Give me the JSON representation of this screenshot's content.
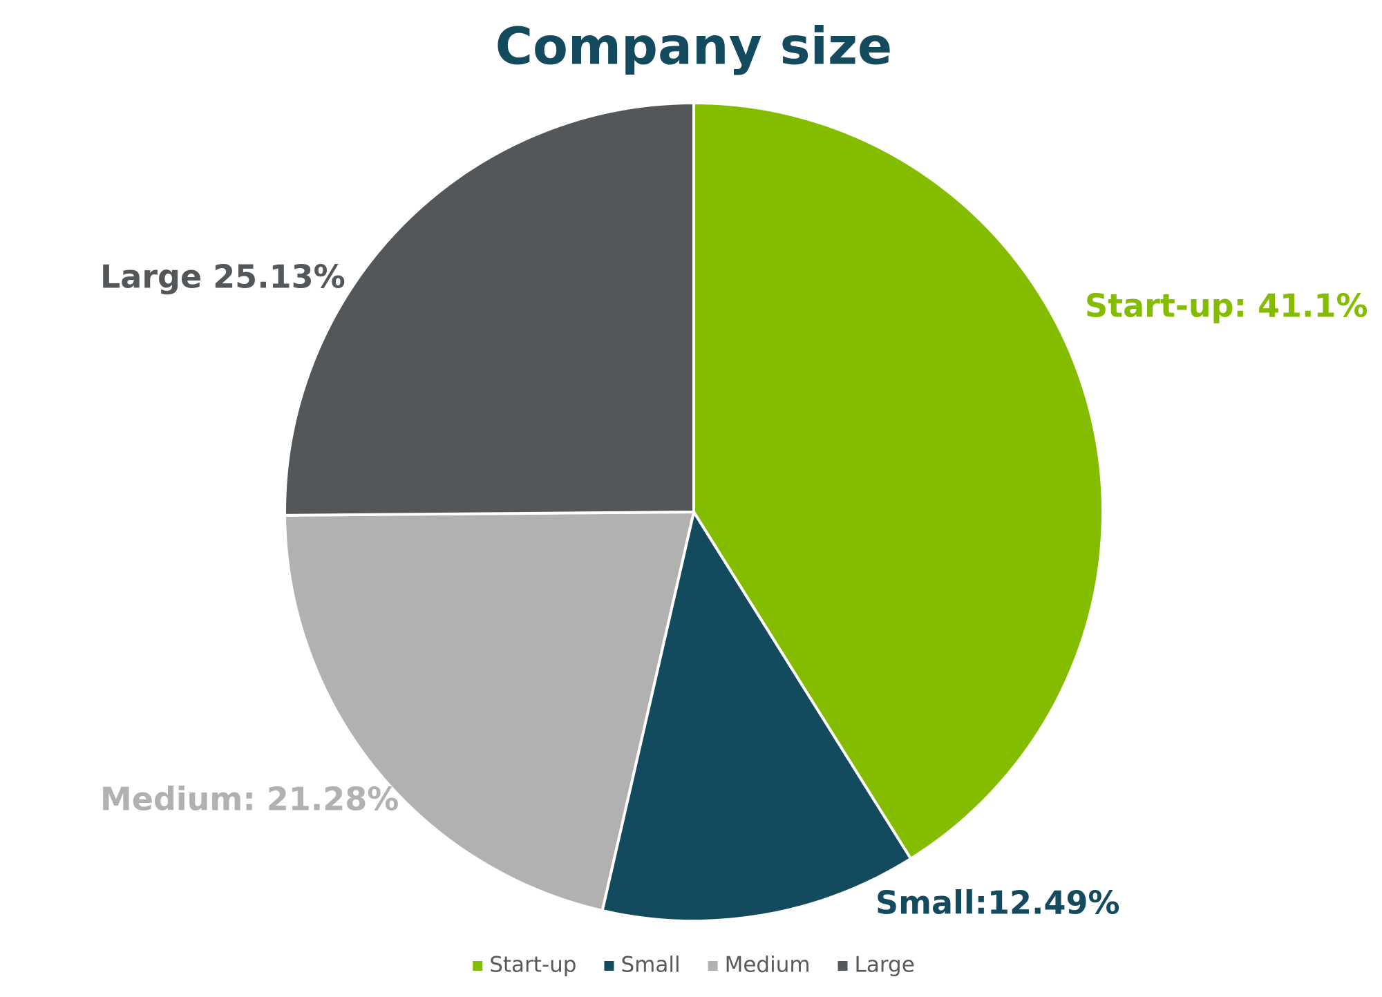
{
  "chart_data": {
    "type": "pie",
    "title": "Company size",
    "categories": [
      "Start-up",
      "Small",
      "Medium",
      "Large"
    ],
    "values": [
      41.1,
      12.49,
      21.28,
      25.13
    ],
    "value_labels": [
      "Start-up: 41.1%",
      "Small:12.49%",
      "Medium: 21.28%",
      "Large 25.13%"
    ],
    "colors": [
      "#84bc00",
      "#134a5e",
      "#b1b1b1",
      "#53575a"
    ],
    "legend": "bottom"
  }
}
